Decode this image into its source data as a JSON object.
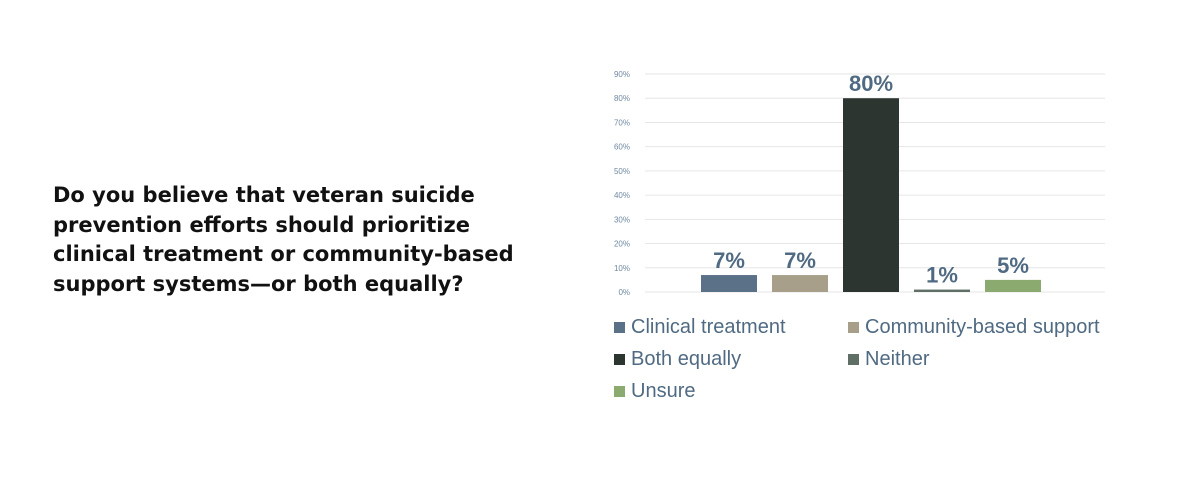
{
  "question": "Do you believe that veteran suicide prevention efforts should prioritize clinical treatment or community-based support systems—or both equally?",
  "chart_data": {
    "type": "bar",
    "categories": [
      "Clinical treatment",
      "Community-based support",
      "Both equally",
      "Neither",
      "Unsure"
    ],
    "values": [
      7,
      7,
      80,
      1,
      5
    ],
    "data_labels": [
      "7%",
      "7%",
      "80%",
      "1%",
      "5%"
    ],
    "colors": [
      "#5b7188",
      "#a89f8b",
      "#2c352f",
      "#5f6f66",
      "#8aaa6f"
    ],
    "ylim": [
      0,
      90
    ],
    "yticks": [
      0,
      10,
      20,
      30,
      40,
      50,
      60,
      70,
      80,
      90
    ],
    "ytick_labels": [
      "0%",
      "10%",
      "20%",
      "30%",
      "40%",
      "50%",
      "60%",
      "70%",
      "80%",
      "90%"
    ],
    "grid": true,
    "legend_position": "bottom",
    "title": "",
    "xlabel": "",
    "ylabel": ""
  }
}
